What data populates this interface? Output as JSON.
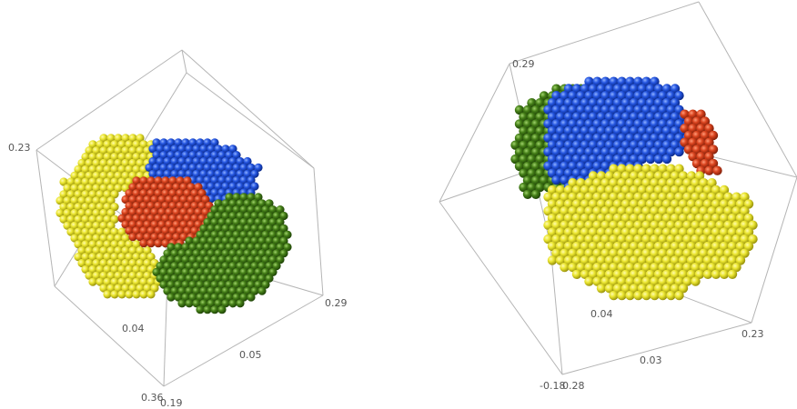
{
  "colors": {
    "yellow": "#e6e22a",
    "blue": "#1e4fd8",
    "red": "#d8401c",
    "green": "#3f7d16",
    "box_edge": "#b5b5b5",
    "tick_text": "#555555"
  },
  "panels": [
    {
      "ticks": [
        "0.23",
        "0.29",
        "0.04",
        "0.05",
        "0.36",
        "0.19"
      ],
      "clusters": [
        "yellow",
        "blue",
        "red",
        "green"
      ]
    },
    {
      "ticks": [
        "0.29",
        "0.04",
        "0.03",
        "0.23",
        "-0.18",
        "0.28"
      ],
      "clusters": [
        "green",
        "blue",
        "red",
        "yellow"
      ]
    }
  ]
}
